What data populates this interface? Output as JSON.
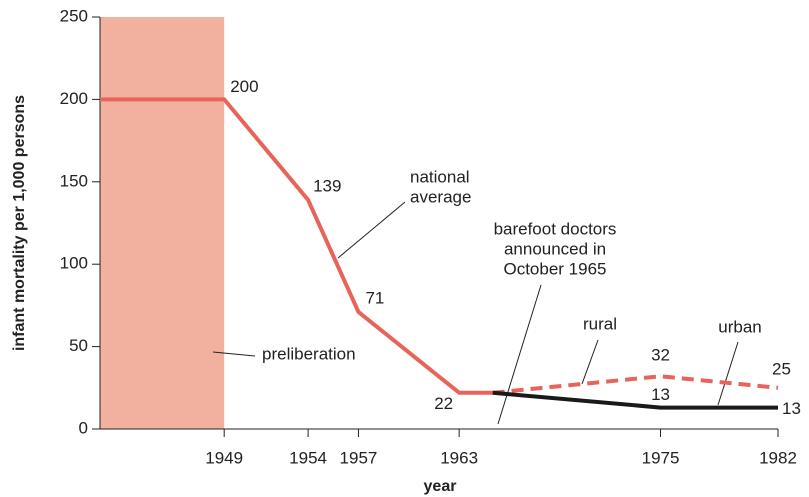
{
  "chart_data": {
    "type": "line",
    "ylabel": "infant mortality per 1,000 persons",
    "xlabel": "year",
    "xlim": [
      1941.6,
      1982
    ],
    "ylim": [
      0,
      250
    ],
    "xticks": [
      1949,
      1954,
      1957,
      1963,
      1975,
      1982
    ],
    "yticks": [
      0,
      50,
      100,
      150,
      200,
      250
    ],
    "shaded_region": {
      "x": [
        1941.6,
        1949
      ],
      "label": "preliberation",
      "color": "#f2b09e"
    },
    "series": [
      {
        "color": "#e8645a",
        "style": "solid",
        "x": [
          1941.6,
          1949,
          1954,
          1957,
          1963,
          1965
        ],
        "values": [
          200,
          200,
          139,
          71,
          22,
          22
        ]
      },
      {
        "name": "rural",
        "color": "#e8645a",
        "style": "dashed",
        "x": [
          1965,
          1975,
          1982
        ],
        "values": [
          22,
          32,
          25
        ]
      },
      {
        "name": "urban",
        "color": "#1a1a1a",
        "style": "solid",
        "x": [
          1965,
          1975,
          1982
        ],
        "values": [
          22,
          13,
          13
        ]
      }
    ],
    "annotations": [
      {
        "lines": [
          "national",
          "average"
        ]
      },
      {
        "lines": [
          "barefoot doctors",
          "announced in",
          "October 1965"
        ]
      }
    ]
  }
}
